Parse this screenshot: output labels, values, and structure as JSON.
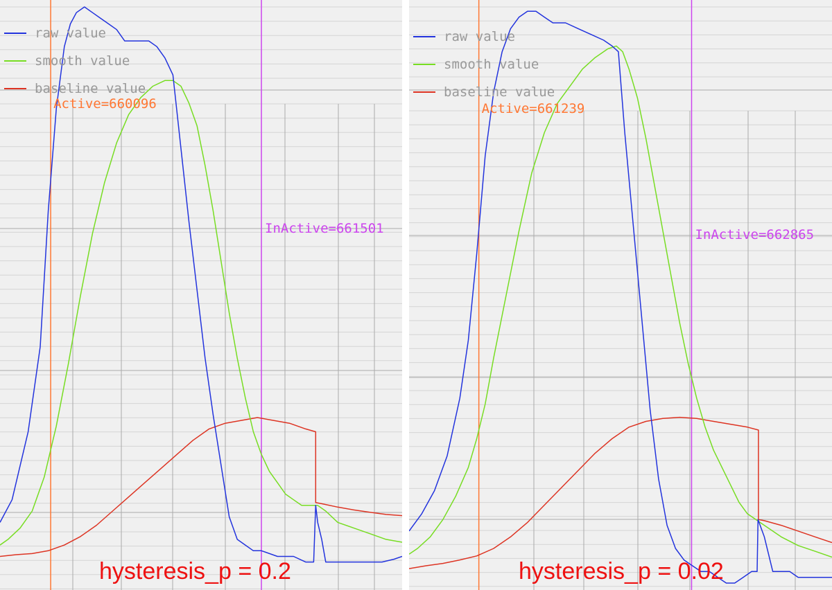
{
  "colors": {
    "raw": "#2233dd",
    "smooth": "#77dd22",
    "baseline": "#dd3322",
    "active": "#ff7733",
    "inactive": "#cc44ee",
    "caption": "#ee1111",
    "legend_text": "#999999",
    "grid_major": "#aaaaaa",
    "grid_minor": "#d4d4d4",
    "background": "#f0f0f0"
  },
  "chart_data": [
    {
      "type": "line",
      "caption": "hysteresis_p = 0.2",
      "legend": [
        "raw value",
        "smooth value",
        "baseline value"
      ],
      "active_label": "Active=660096",
      "inactive_label": "InActive=661501",
      "grid": true,
      "legend_position": "top-left",
      "xlim": [
        0,
        100
      ],
      "ylim": [
        0,
        100
      ],
      "active_x": 12.6,
      "inactive_x": 65.0,
      "series": [
        {
          "key": "raw",
          "points": [
            [
              0,
              9
            ],
            [
              3,
              13
            ],
            [
              7,
              25
            ],
            [
              10,
              40
            ],
            [
              12,
              64
            ],
            [
              14,
              82
            ],
            [
              16,
              93
            ],
            [
              17.5,
              97
            ],
            [
              19,
              99
            ],
            [
              21,
              100
            ],
            [
              23,
              99
            ],
            [
              25,
              98
            ],
            [
              27,
              97
            ],
            [
              29,
              96
            ],
            [
              31,
              94
            ],
            [
              33,
              94
            ],
            [
              35,
              94
            ],
            [
              37,
              94
            ],
            [
              39,
              93
            ],
            [
              41,
              91
            ],
            [
              43,
              88
            ],
            [
              45,
              75
            ],
            [
              47,
              62
            ],
            [
              49,
              50
            ],
            [
              51,
              38
            ],
            [
              53,
              28
            ],
            [
              55,
              19
            ],
            [
              57,
              10
            ],
            [
              59,
              6
            ],
            [
              61,
              5
            ],
            [
              63,
              4
            ],
            [
              65,
              4
            ],
            [
              69,
              3
            ],
            [
              73,
              3
            ],
            [
              76,
              2
            ],
            [
              78,
              2
            ],
            [
              78.5,
              12
            ],
            [
              79,
              9
            ],
            [
              80,
              6
            ],
            [
              81,
              2
            ],
            [
              83,
              2
            ],
            [
              87,
              2
            ],
            [
              91,
              2
            ],
            [
              95,
              2
            ],
            [
              98,
              2.5
            ],
            [
              100,
              3
            ]
          ]
        },
        {
          "key": "smooth",
          "points": [
            [
              0,
              5
            ],
            [
              2,
              6
            ],
            [
              5,
              8
            ],
            [
              8,
              11
            ],
            [
              11,
              17
            ],
            [
              14,
              26
            ],
            [
              17,
              37
            ],
            [
              20,
              49
            ],
            [
              23,
              60
            ],
            [
              26,
              69
            ],
            [
              29,
              76
            ],
            [
              32,
              81
            ],
            [
              35,
              84
            ],
            [
              38,
              86
            ],
            [
              41,
              87
            ],
            [
              43,
              87
            ],
            [
              45,
              86
            ],
            [
              47,
              83
            ],
            [
              49,
              79
            ],
            [
              51,
              72
            ],
            [
              53,
              64
            ],
            [
              55,
              55
            ],
            [
              57,
              46
            ],
            [
              59,
              38
            ],
            [
              61,
              31
            ],
            [
              63,
              25
            ],
            [
              65,
              21
            ],
            [
              67,
              18
            ],
            [
              69,
              16
            ],
            [
              71,
              14
            ],
            [
              73,
              13
            ],
            [
              75,
              12
            ],
            [
              77,
              12
            ],
            [
              79,
              12
            ],
            [
              81,
              11
            ],
            [
              84,
              9
            ],
            [
              88,
              8
            ],
            [
              92,
              7
            ],
            [
              96,
              6
            ],
            [
              100,
              5.5
            ]
          ]
        },
        {
          "key": "baseline",
          "points": [
            [
              0,
              3
            ],
            [
              4,
              3.3
            ],
            [
              8,
              3.5
            ],
            [
              12,
              4
            ],
            [
              16,
              5
            ],
            [
              20,
              6.5
            ],
            [
              24,
              8.5
            ],
            [
              28,
              11
            ],
            [
              32,
              13.5
            ],
            [
              36,
              16
            ],
            [
              40,
              18.5
            ],
            [
              44,
              21
            ],
            [
              48,
              23.5
            ],
            [
              52,
              25.5
            ],
            [
              56,
              26.5
            ],
            [
              60,
              27
            ],
            [
              64,
              27.5
            ],
            [
              68,
              27
            ],
            [
              72,
              26.5
            ],
            [
              76,
              25.5
            ],
            [
              78.5,
              25
            ],
            [
              78.5,
              12.5
            ],
            [
              80,
              12.3
            ],
            [
              84,
              11.7
            ],
            [
              88,
              11.2
            ],
            [
              92,
              10.8
            ],
            [
              96,
              10.4
            ],
            [
              100,
              10.2
            ]
          ]
        }
      ]
    },
    {
      "type": "line",
      "caption": "hysteresis_p = 0.02",
      "legend": [
        "raw value",
        "smooth value",
        "baseline value"
      ],
      "active_label": "Active=661239",
      "inactive_label": "InActive=662865",
      "grid": true,
      "legend_position": "top-left",
      "xlim": [
        0,
        100
      ],
      "ylim": [
        0,
        100
      ],
      "active_x": 16.5,
      "inactive_x": 66.8,
      "series": [
        {
          "key": "raw",
          "points": [
            [
              0,
              9
            ],
            [
              3,
              12
            ],
            [
              6,
              16
            ],
            [
              9,
              22
            ],
            [
              12,
              32
            ],
            [
              14,
              42
            ],
            [
              16,
              57
            ],
            [
              18,
              74
            ],
            [
              20,
              85
            ],
            [
              22,
              92
            ],
            [
              24,
              96
            ],
            [
              26,
              98
            ],
            [
              28,
              99
            ],
            [
              30,
              99
            ],
            [
              32,
              98
            ],
            [
              34,
              97
            ],
            [
              37,
              97
            ],
            [
              40,
              96
            ],
            [
              43,
              95
            ],
            [
              46,
              94
            ],
            [
              48,
              93
            ],
            [
              49.5,
              92
            ],
            [
              51,
              78
            ],
            [
              53,
              62
            ],
            [
              55,
              46
            ],
            [
              57,
              30
            ],
            [
              59,
              18
            ],
            [
              61,
              10
            ],
            [
              63,
              6
            ],
            [
              65,
              4
            ],
            [
              67,
              3
            ],
            [
              69,
              2
            ],
            [
              71,
              2
            ],
            [
              73,
              1
            ],
            [
              75,
              0
            ],
            [
              77,
              0
            ],
            [
              79,
              1
            ],
            [
              81,
              2
            ],
            [
              82.3,
              2
            ],
            [
              82.5,
              11
            ],
            [
              84,
              8
            ],
            [
              85,
              5
            ],
            [
              86,
              2
            ],
            [
              88,
              2
            ],
            [
              90,
              2
            ],
            [
              92,
              1
            ],
            [
              94,
              1
            ],
            [
              96,
              1
            ],
            [
              98,
              1
            ],
            [
              100,
              1
            ]
          ]
        },
        {
          "key": "smooth",
          "points": [
            [
              0,
              5
            ],
            [
              2,
              6
            ],
            [
              5,
              8
            ],
            [
              8,
              11
            ],
            [
              11,
              15
            ],
            [
              14,
              20
            ],
            [
              16,
              25
            ],
            [
              18,
              31
            ],
            [
              20,
              39
            ],
            [
              23,
              50
            ],
            [
              26,
              61
            ],
            [
              29,
              71
            ],
            [
              32,
              78
            ],
            [
              35,
              83
            ],
            [
              38,
              86
            ],
            [
              41,
              89
            ],
            [
              44,
              91
            ],
            [
              47,
              92.5
            ],
            [
              49,
              93
            ],
            [
              50.5,
              92
            ],
            [
              52,
              89
            ],
            [
              54,
              84
            ],
            [
              56,
              77
            ],
            [
              58,
              69
            ],
            [
              60,
              61
            ],
            [
              62,
              53
            ],
            [
              64,
              45
            ],
            [
              66,
              38
            ],
            [
              68,
              32
            ],
            [
              70,
              27
            ],
            [
              72,
              23
            ],
            [
              74,
              20
            ],
            [
              76,
              17
            ],
            [
              78,
              14
            ],
            [
              80,
              12
            ],
            [
              82,
              11
            ],
            [
              84,
              10
            ],
            [
              88,
              8
            ],
            [
              92,
              6.5
            ],
            [
              96,
              5.5
            ],
            [
              100,
              4.5
            ]
          ]
        },
        {
          "key": "baseline",
          "points": [
            [
              0,
              2.5
            ],
            [
              4,
              3
            ],
            [
              8,
              3.4
            ],
            [
              12,
              4
            ],
            [
              16,
              4.7
            ],
            [
              20,
              6
            ],
            [
              24,
              8
            ],
            [
              28,
              10.5
            ],
            [
              32,
              13.5
            ],
            [
              36,
              16.5
            ],
            [
              40,
              19.5
            ],
            [
              44,
              22.5
            ],
            [
              48,
              25
            ],
            [
              52,
              27
            ],
            [
              56,
              28
            ],
            [
              60,
              28.5
            ],
            [
              64,
              28.7
            ],
            [
              68,
              28.5
            ],
            [
              72,
              28
            ],
            [
              76,
              27.5
            ],
            [
              80,
              27
            ],
            [
              82.6,
              26.5
            ],
            [
              82.6,
              11
            ],
            [
              84,
              10.8
            ],
            [
              88,
              10
            ],
            [
              92,
              9
            ],
            [
              96,
              8
            ],
            [
              100,
              7
            ]
          ]
        }
      ]
    }
  ]
}
